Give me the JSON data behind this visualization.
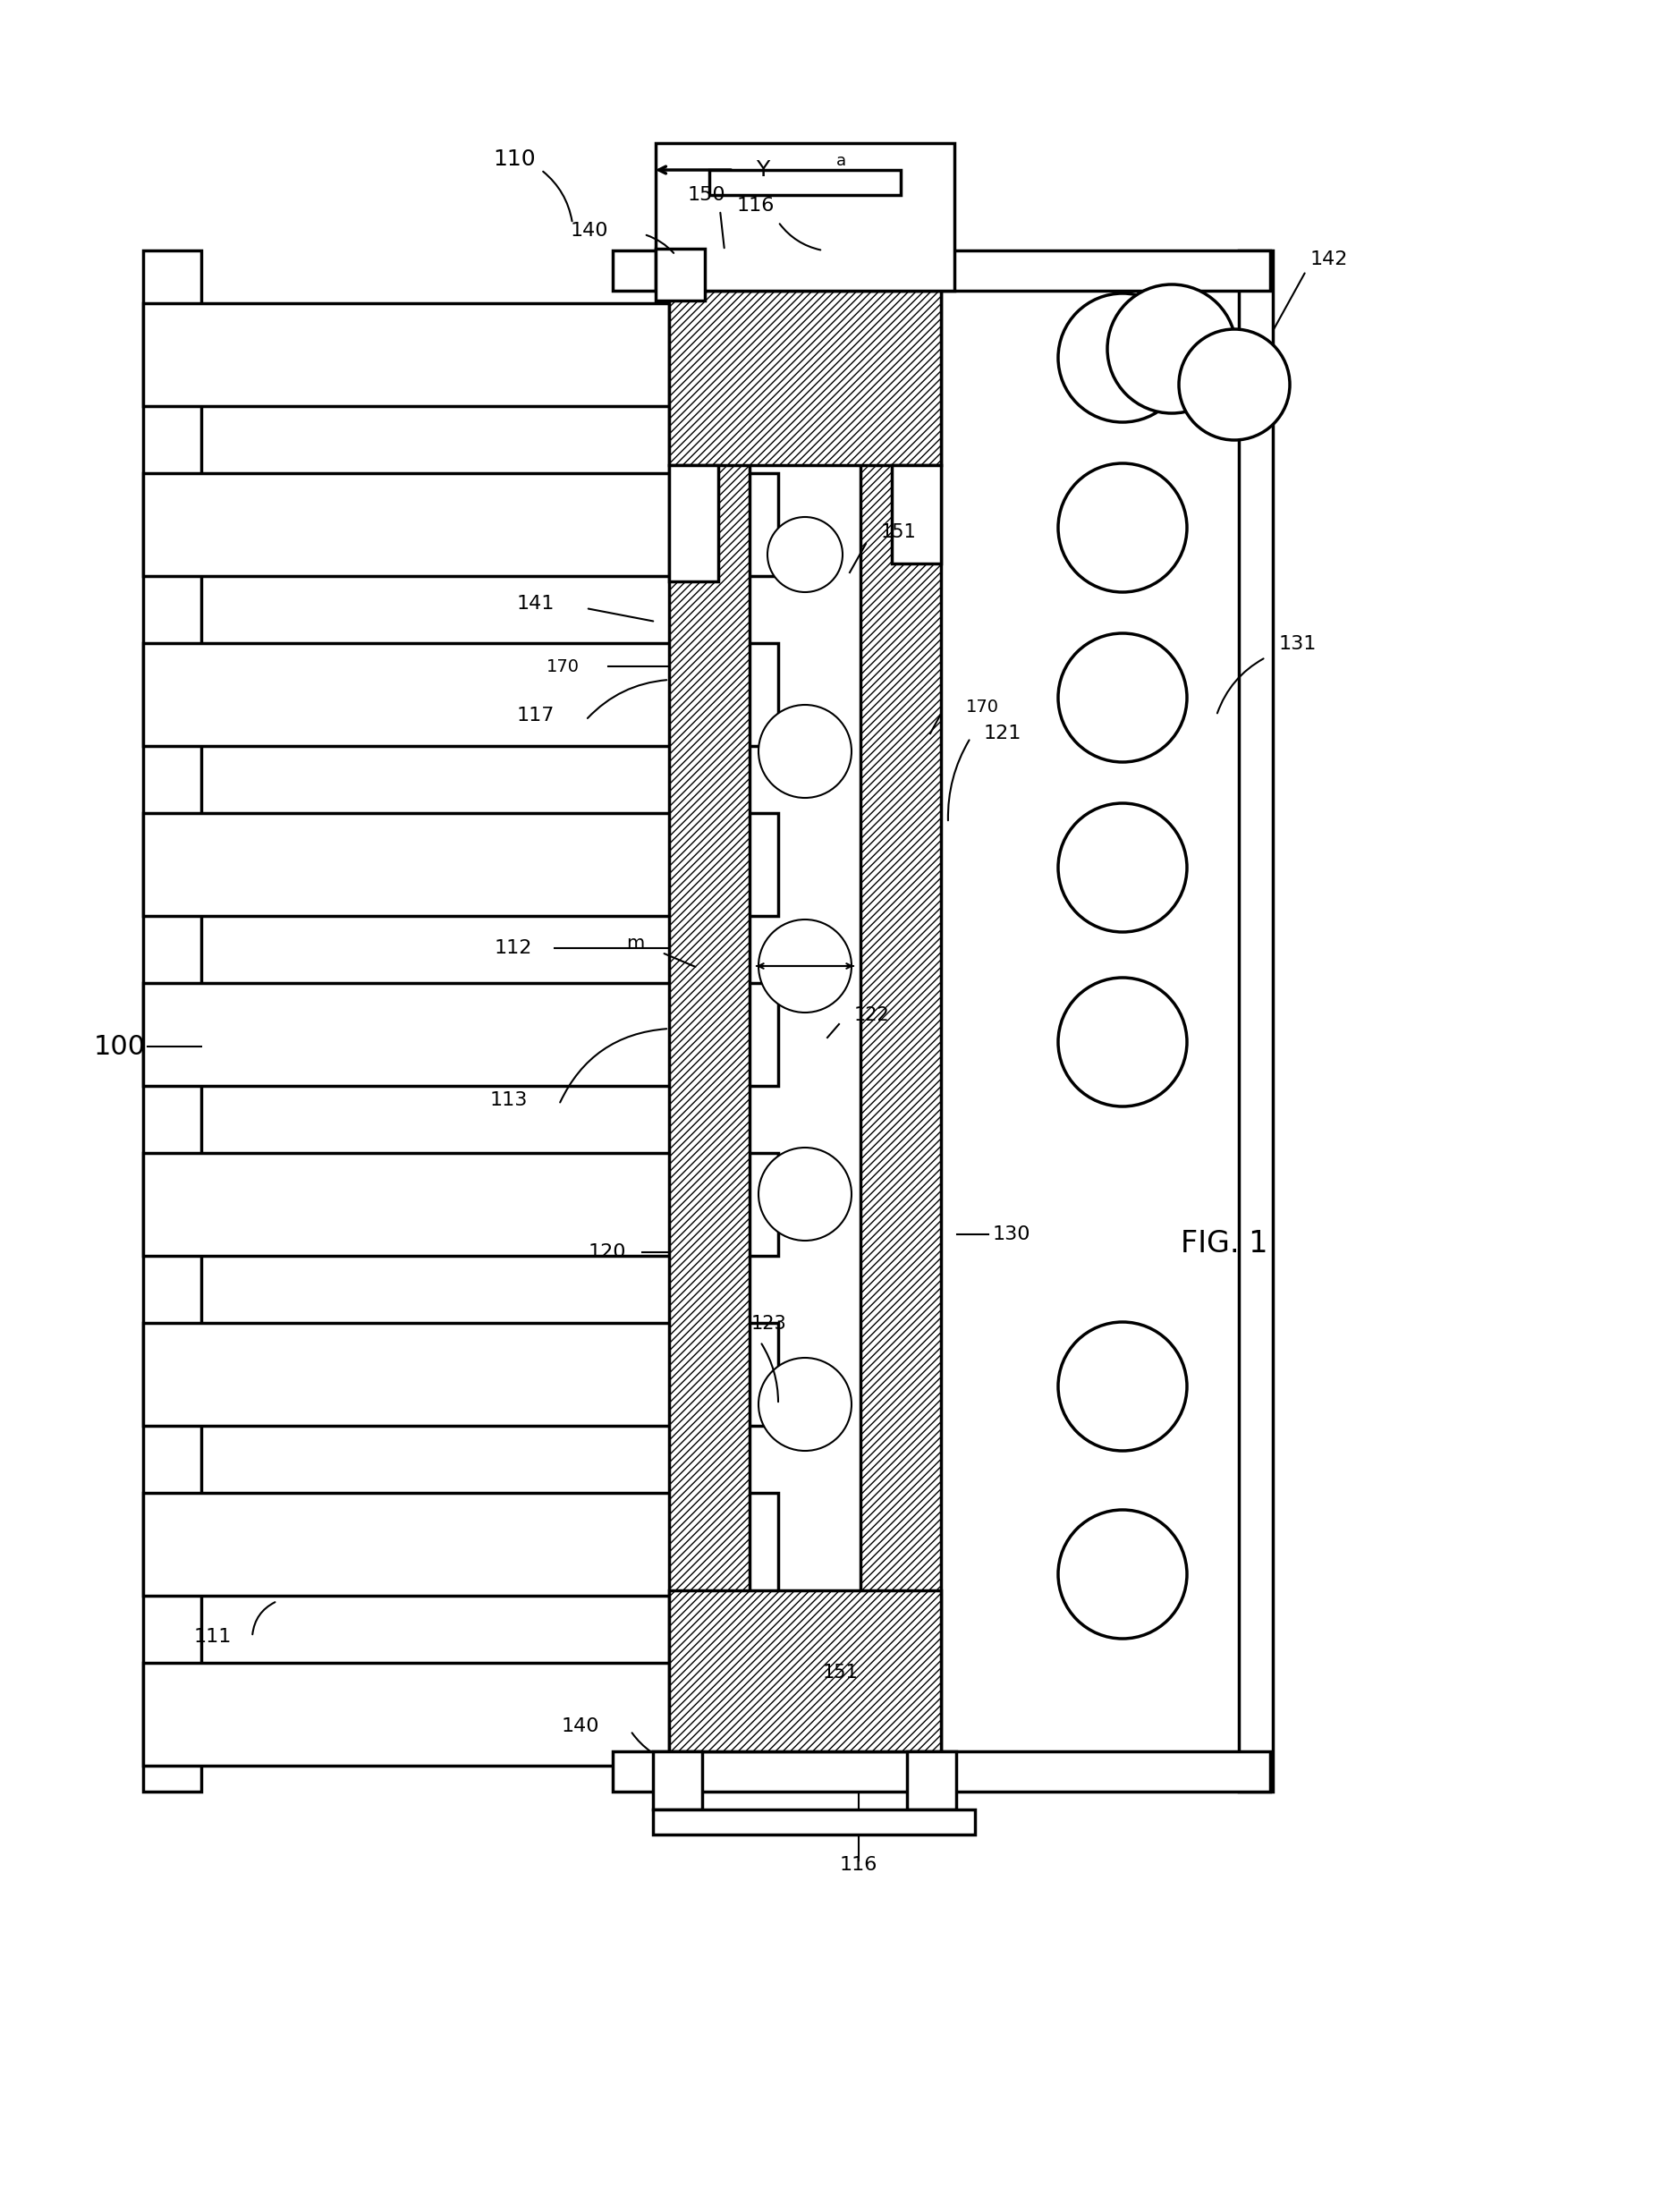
{
  "bg": "#ffffff",
  "lc": "#000000",
  "lw": 2.5,
  "tlw": 1.5,
  "fig_label": "FIG. 1",
  "ref_100": "100",
  "ref_110": "110",
  "ref_111": "111",
  "ref_112": "112",
  "ref_113": "113",
  "ref_116": "116",
  "ref_117": "117",
  "ref_120": "120",
  "ref_121": "121",
  "ref_122": "122",
  "ref_123": "123",
  "ref_130": "130",
  "ref_131": "131",
  "ref_140": "140",
  "ref_141": "141",
  "ref_142": "142",
  "ref_150": "150",
  "ref_151": "151",
  "ref_170": "170",
  "ref_m": "m",
  "ref_Y": "Y",
  "ref_a": "a"
}
